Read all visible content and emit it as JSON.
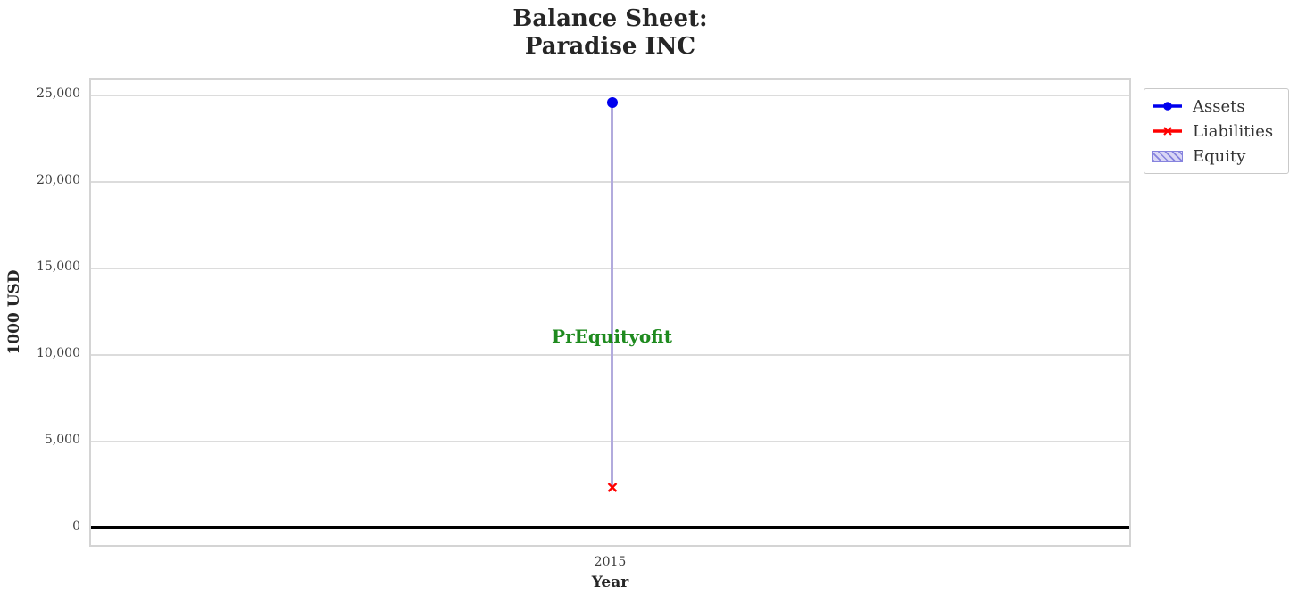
{
  "title": "Balance Sheet:\nParadise INC",
  "axes": {
    "xlabel": "Year",
    "ylabel": "1000 USD",
    "xtick": "2015"
  },
  "legend": {
    "items": [
      {
        "label": "Assets",
        "marker": "line-circle",
        "color": "#0000ee"
      },
      {
        "label": "Liabilities",
        "marker": "line-x",
        "color": "#ff0000"
      },
      {
        "label": "Equity",
        "marker": "hatch-patch",
        "fill": "#d9d6f5",
        "hatch_color": "#8683de"
      }
    ]
  },
  "annotation": {
    "text": "PrEquityofit",
    "color": "#1e8a1e"
  },
  "chart_data": {
    "type": "line",
    "title": "Balance Sheet: Paradise INC",
    "xlabel": "Year",
    "ylabel": "1000 USD",
    "x": [
      2015
    ],
    "series": [
      {
        "name": "Assets",
        "marker": "circle",
        "color": "#0000ee",
        "values": [
          24600
        ]
      },
      {
        "name": "Liabilities",
        "marker": "x",
        "color": "#ff0000",
        "values": [
          2330
        ]
      },
      {
        "name": "Equity",
        "style": "hatched-band",
        "color": "#b2abdd",
        "band_from": 2330,
        "band_to": 24600,
        "values": [
          22270
        ]
      }
    ],
    "annotation": {
      "text": "PrEquityofit",
      "x": 2015,
      "y": 11100,
      "color": "#1e8a1e"
    },
    "yticks": [
      0,
      5000,
      10000,
      15000,
      20000,
      25000
    ],
    "ylim": [
      -1200,
      25900
    ],
    "grid": true,
    "zero_line": true,
    "legend_position": "outside upper right"
  }
}
